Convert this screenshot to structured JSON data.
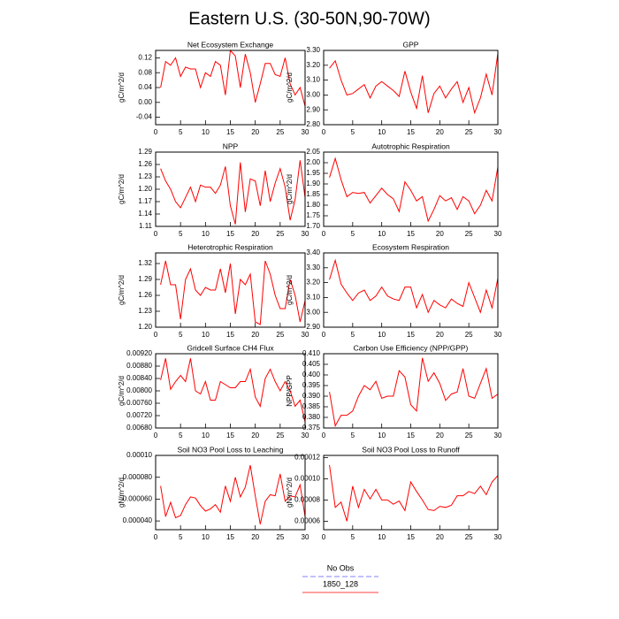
{
  "title": "Eastern U.S. (30-50N,90-70W)",
  "legend": [
    {
      "name": "No Obs",
      "color": "#8080ff",
      "style": "dashed"
    },
    {
      "name": "1850_128",
      "color": "#ff4040",
      "style": "solid"
    }
  ],
  "chart_data": [
    {
      "type": "line",
      "title": "Net Ecosystem Exchange",
      "y_label": "gC/m^2/d",
      "color": "#ff0000",
      "x": [
        1,
        2,
        3,
        4,
        5,
        6,
        7,
        8,
        9,
        10,
        11,
        12,
        13,
        14,
        15,
        16,
        17,
        18,
        19,
        20,
        21,
        22,
        23,
        24,
        25,
        26,
        27,
        28,
        29,
        30
      ],
      "values": [
        0.04,
        0.11,
        0.1,
        0.12,
        0.07,
        0.095,
        0.09,
        0.09,
        0.04,
        0.08,
        0.07,
        0.11,
        0.1,
        0.02,
        0.14,
        0.125,
        0.04,
        0.13,
        0.08,
        0.0,
        0.05,
        0.105,
        0.105,
        0.075,
        0.07,
        0.12,
        0.05,
        0.02,
        0.04,
        -0.01
      ],
      "xlim": [
        0,
        30
      ],
      "xticks": [
        0,
        5,
        10,
        15,
        20,
        25,
        30
      ],
      "ylim": [
        -0.06,
        0.14
      ],
      "yticks": [
        -0.04,
        {
          "value": 0,
          "label": "0.00"
        },
        0.04,
        0.08,
        0.12
      ]
    },
    {
      "type": "line",
      "title": "GPP",
      "y_label": "gC/m^2/d",
      "color": "#ff0000",
      "x": [
        1,
        2,
        3,
        4,
        5,
        6,
        7,
        8,
        9,
        10,
        11,
        12,
        13,
        14,
        15,
        16,
        17,
        18,
        19,
        20,
        21,
        22,
        23,
        24,
        25,
        26,
        27,
        28,
        29,
        30
      ],
      "values": [
        3.18,
        3.23,
        3.1,
        3.0,
        3.01,
        3.04,
        3.07,
        2.98,
        3.06,
        3.09,
        3.06,
        3.03,
        2.99,
        3.16,
        3.02,
        2.91,
        3.13,
        2.88,
        3.01,
        3.06,
        2.98,
        3.04,
        3.09,
        2.95,
        3.05,
        2.88,
        2.98,
        3.14,
        3.0,
        3.28
      ],
      "xlim": [
        0,
        30
      ],
      "xticks": [
        0,
        5,
        10,
        15,
        20,
        25,
        30
      ],
      "ylim": [
        2.8,
        3.3
      ],
      "yticks": [
        {
          "value": 2.8,
          "label": "2.80"
        },
        {
          "value": 2.9,
          "label": "2.90"
        },
        {
          "value": 3.0,
          "label": "3.00"
        },
        {
          "value": 3.1,
          "label": "3.10"
        },
        {
          "value": 3.2,
          "label": "3.20"
        },
        {
          "value": 3.3,
          "label": "3.30"
        }
      ]
    },
    {
      "type": "line",
      "title": "NPP",
      "y_label": "gC/m^2/d",
      "color": "#ff0000",
      "x": [
        1,
        2,
        3,
        4,
        5,
        6,
        7,
        8,
        9,
        10,
        11,
        12,
        13,
        14,
        15,
        16,
        17,
        18,
        19,
        20,
        21,
        22,
        23,
        24,
        25,
        26,
        27,
        28,
        29,
        30
      ],
      "values": [
        1.25,
        1.22,
        1.2,
        1.17,
        1.155,
        1.18,
        1.205,
        1.17,
        1.21,
        1.205,
        1.205,
        1.19,
        1.21,
        1.255,
        1.16,
        1.115,
        1.265,
        1.145,
        1.225,
        1.22,
        1.16,
        1.245,
        1.17,
        1.215,
        1.25,
        1.205,
        1.125,
        1.175,
        1.27,
        1.18
      ],
      "xlim": [
        0,
        30
      ],
      "xticks": [
        0,
        5,
        10,
        15,
        20,
        25,
        30
      ],
      "ylim": [
        1.11,
        1.29
      ],
      "yticks": [
        1.11,
        1.14,
        1.17,
        {
          "value": 1.2,
          "label": "1.20"
        },
        1.23,
        1.26,
        1.29
      ]
    },
    {
      "type": "line",
      "title": "Autotrophic Respiration",
      "y_label": "gC/m^2/d",
      "color": "#ff0000",
      "x": [
        1,
        2,
        3,
        4,
        5,
        6,
        7,
        8,
        9,
        10,
        11,
        12,
        13,
        14,
        15,
        16,
        17,
        18,
        19,
        20,
        21,
        22,
        23,
        24,
        25,
        26,
        27,
        28,
        29,
        30
      ],
      "values": [
        1.93,
        2.02,
        1.92,
        1.84,
        1.86,
        1.855,
        1.86,
        1.81,
        1.845,
        1.88,
        1.85,
        1.83,
        1.77,
        1.91,
        1.87,
        1.82,
        1.84,
        1.725,
        1.78,
        1.845,
        1.82,
        1.835,
        1.78,
        1.84,
        1.82,
        1.76,
        1.8,
        1.87,
        1.82,
        1.98
      ],
      "xlim": [
        0,
        30
      ],
      "xticks": [
        0,
        5,
        10,
        15,
        20,
        25,
        30
      ],
      "ylim": [
        1.7,
        2.05
      ],
      "yticks": [
        {
          "value": 1.7,
          "label": "1.70"
        },
        1.75,
        {
          "value": 1.8,
          "label": "1.80"
        },
        1.85,
        {
          "value": 1.9,
          "label": "1.90"
        },
        1.95,
        {
          "value": 2.0,
          "label": "2.00"
        },
        2.05
      ]
    },
    {
      "type": "line",
      "title": "Heterotrophic Respiration",
      "y_label": "gC/m^2/d",
      "color": "#ff0000",
      "x": [
        1,
        2,
        3,
        4,
        5,
        6,
        7,
        8,
        9,
        10,
        11,
        12,
        13,
        14,
        15,
        16,
        17,
        18,
        19,
        20,
        21,
        22,
        23,
        24,
        25,
        26,
        27,
        28,
        29,
        30
      ],
      "values": [
        1.28,
        1.325,
        1.28,
        1.28,
        1.215,
        1.29,
        1.31,
        1.27,
        1.26,
        1.275,
        1.27,
        1.27,
        1.31,
        1.265,
        1.32,
        1.225,
        1.29,
        1.28,
        1.3,
        1.21,
        1.205,
        1.325,
        1.3,
        1.26,
        1.235,
        1.235,
        1.29,
        1.26,
        1.21,
        1.25
      ],
      "xlim": [
        0,
        30
      ],
      "xticks": [
        0,
        5,
        10,
        15,
        20,
        25,
        30
      ],
      "ylim": [
        1.2,
        1.34
      ],
      "yticks": [
        {
          "value": 1.2,
          "label": "1.20"
        },
        1.23,
        1.26,
        1.29,
        1.32
      ]
    },
    {
      "type": "line",
      "title": "Ecosystem Respiration",
      "y_label": "gC/m^2/d",
      "color": "#ff0000",
      "x": [
        1,
        2,
        3,
        4,
        5,
        6,
        7,
        8,
        9,
        10,
        11,
        12,
        13,
        14,
        15,
        16,
        17,
        18,
        19,
        20,
        21,
        22,
        23,
        24,
        25,
        26,
        27,
        28,
        29,
        30
      ],
      "values": [
        3.22,
        3.35,
        3.19,
        3.13,
        3.08,
        3.13,
        3.15,
        3.08,
        3.11,
        3.17,
        3.11,
        3.09,
        3.08,
        3.17,
        3.17,
        3.03,
        3.12,
        3.0,
        3.08,
        3.05,
        3.03,
        3.09,
        3.06,
        3.04,
        3.2,
        3.1,
        3.0,
        3.15,
        3.03,
        3.23
      ],
      "xlim": [
        0,
        30
      ],
      "xticks": [
        0,
        5,
        10,
        15,
        20,
        25,
        30
      ],
      "ylim": [
        2.9,
        3.4
      ],
      "yticks": [
        {
          "value": 2.9,
          "label": "2.90"
        },
        {
          "value": 3.0,
          "label": "3.00"
        },
        {
          "value": 3.1,
          "label": "3.10"
        },
        {
          "value": 3.2,
          "label": "3.20"
        },
        {
          "value": 3.3,
          "label": "3.30"
        },
        {
          "value": 3.4,
          "label": "3.40"
        }
      ]
    },
    {
      "type": "line",
      "title": "Gridcell Surface CH4 Flux",
      "y_label": "gC/m^2/d",
      "color": "#ff0000",
      "x": [
        1,
        2,
        3,
        4,
        5,
        6,
        7,
        8,
        9,
        10,
        11,
        12,
        13,
        14,
        15,
        16,
        17,
        18,
        19,
        20,
        21,
        22,
        23,
        24,
        25,
        26,
        27,
        28,
        29,
        30
      ],
      "values": [
        0.00835,
        0.00905,
        0.00805,
        0.0083,
        0.0085,
        0.0083,
        0.00905,
        0.008,
        0.0079,
        0.0083,
        0.0077,
        0.0077,
        0.0083,
        0.0082,
        0.0081,
        0.0081,
        0.0083,
        0.0083,
        0.0087,
        0.0078,
        0.0075,
        0.0084,
        0.0087,
        0.0083,
        0.008,
        0.0083,
        0.008,
        0.0075,
        0.0077,
        0.007
      ],
      "xlim": [
        0,
        30
      ],
      "xticks": [
        0,
        5,
        10,
        15,
        20,
        25,
        30
      ],
      "ylim": [
        0.0068,
        0.0092
      ],
      "yticks": [
        {
          "value": 0.0068,
          "label": "0.00680"
        },
        {
          "value": 0.0072,
          "label": "0.00720"
        },
        {
          "value": 0.0076,
          "label": "0.00760"
        },
        {
          "value": 0.008,
          "label": "0.00800"
        },
        {
          "value": 0.0084,
          "label": "0.00840"
        },
        {
          "value": 0.0088,
          "label": "0.00880"
        },
        {
          "value": 0.0092,
          "label": "0.00920"
        }
      ]
    },
    {
      "type": "line",
      "title": "Carbon Use Efficiency (NPP/GPP)",
      "y_label": "NPP/GPP",
      "color": "#ff0000",
      "x": [
        1,
        2,
        3,
        4,
        5,
        6,
        7,
        8,
        9,
        10,
        11,
        12,
        13,
        14,
        15,
        16,
        17,
        18,
        19,
        20,
        21,
        22,
        23,
        24,
        25,
        26,
        27,
        28,
        29,
        30
      ],
      "values": [
        0.392,
        0.376,
        0.381,
        0.381,
        0.383,
        0.39,
        0.395,
        0.393,
        0.397,
        0.389,
        0.39,
        0.39,
        0.402,
        0.399,
        0.386,
        0.383,
        0.408,
        0.397,
        0.401,
        0.396,
        0.388,
        0.391,
        0.392,
        0.403,
        0.39,
        0.389,
        0.396,
        0.403,
        0.389,
        0.391
      ],
      "xlim": [
        0,
        30
      ],
      "xticks": [
        0,
        5,
        10,
        15,
        20,
        25,
        30
      ],
      "ylim": [
        0.375,
        0.41
      ],
      "yticks": [
        0.375,
        {
          "value": 0.38,
          "label": "0.380"
        },
        0.385,
        {
          "value": 0.39,
          "label": "0.390"
        },
        0.395,
        {
          "value": 0.4,
          "label": "0.400"
        },
        0.405,
        {
          "value": 0.41,
          "label": "0.410"
        }
      ]
    },
    {
      "type": "line",
      "title": "Soil NO3 Pool Loss to Leaching",
      "y_label": "gN/m^2/d",
      "color": "#ff0000",
      "x": [
        1,
        2,
        3,
        4,
        5,
        6,
        7,
        8,
        9,
        10,
        11,
        12,
        13,
        14,
        15,
        16,
        17,
        18,
        19,
        20,
        21,
        22,
        23,
        24,
        25,
        26,
        27,
        28,
        29,
        30
      ],
      "values": [
        7.2e-05,
        4.4e-05,
        5.7e-05,
        4.3e-05,
        4.5e-05,
        5.5e-05,
        6.2e-05,
        6.1e-05,
        5.4e-05,
        4.9e-05,
        5.1e-05,
        5.5e-05,
        4.8e-05,
        7.2e-05,
        5.8e-05,
        8e-05,
        6.2e-05,
        7.1e-05,
        9.1e-05,
        6.3e-05,
        3.7e-05,
        5.8e-05,
        6.4e-05,
        6.3e-05,
        8.3e-05,
        5.8e-05,
        6.3e-05,
        6.2e-05,
        7.3e-05,
        4.4e-05
      ],
      "xlim": [
        0,
        30
      ],
      "xticks": [
        0,
        5,
        10,
        15,
        20,
        25,
        30
      ],
      "ylim": [
        3.2e-05,
        0.0001
      ],
      "yticks": [
        {
          "value": 4e-05,
          "label": "0.000040"
        },
        {
          "value": 6e-05,
          "label": "0.000060"
        },
        {
          "value": 8e-05,
          "label": "0.000080"
        },
        {
          "value": 0.0001,
          "label": "0.00010"
        }
      ]
    },
    {
      "type": "line",
      "title": "Soil NO3 Pool Loss to Runoff",
      "y_label": "gN/m^2/d",
      "color": "#ff0000",
      "x": [
        1,
        2,
        3,
        4,
        5,
        6,
        7,
        8,
        9,
        10,
        11,
        12,
        13,
        14,
        15,
        16,
        17,
        18,
        19,
        20,
        21,
        22,
        23,
        24,
        25,
        26,
        27,
        28,
        29,
        30
      ],
      "values": [
        0.000113,
        7.3e-05,
        7.8e-05,
        6e-05,
        9.3e-05,
        7.3e-05,
        9e-05,
        8.1e-05,
        9e-05,
        8e-05,
        8e-05,
        7.6e-05,
        7.9e-05,
        7e-05,
        9.7e-05,
        8.8e-05,
        8e-05,
        7.1e-05,
        7e-05,
        7.4e-05,
        7.3e-05,
        7.5e-05,
        8.4e-05,
        8.4e-05,
        8.8e-05,
        8.6e-05,
        9.3e-05,
        8.5e-05,
        9.7e-05,
        0.000103
      ],
      "xlim": [
        0,
        30
      ],
      "xticks": [
        0,
        5,
        10,
        15,
        20,
        25,
        30
      ],
      "ylim": [
        5.2e-05,
        0.000122
      ],
      "yticks": [
        {
          "value": 6e-05,
          "label": "0.00006"
        },
        {
          "value": 8e-05,
          "label": "0.00008"
        },
        {
          "value": 0.0001,
          "label": "0.00010"
        },
        {
          "value": 0.00012,
          "label": "0.00012"
        }
      ]
    }
  ]
}
